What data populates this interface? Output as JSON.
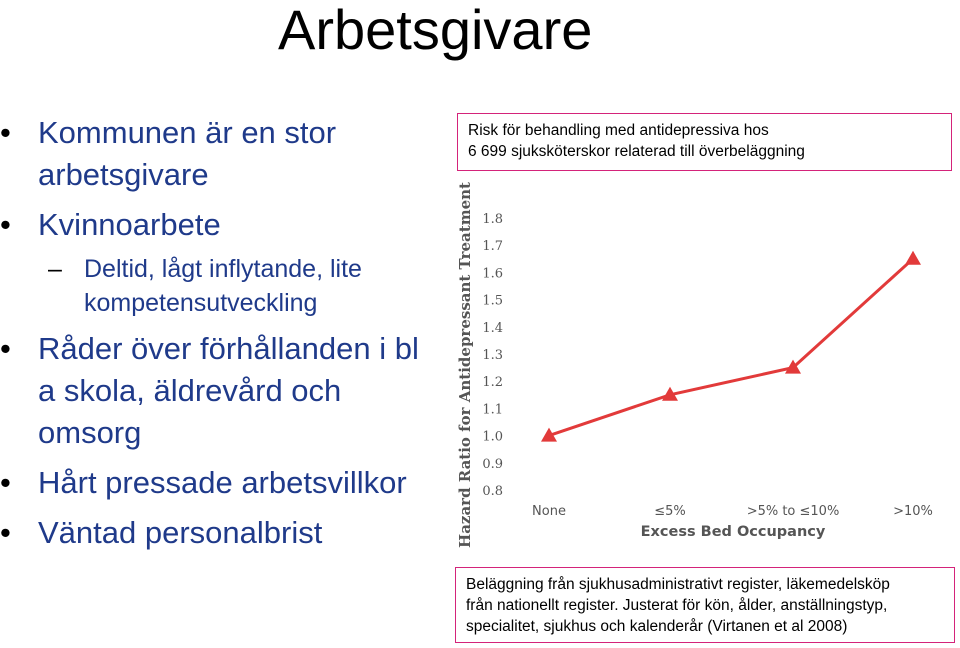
{
  "title": "Arbetsgivare",
  "bullets": [
    "Kommunen är en stor arbetsgivare",
    "Kvinnoarbete",
    "Deltid, lågt inflytande, lite kompetensutveckling",
    "Råder över förhållanden i bl a skola, äldrevård och omsorg",
    "Hårt pressade arbetsvillkor",
    "Väntad personalbrist"
  ],
  "caption_top": {
    "line1": "Risk för behandling med antidepressiva hos",
    "line2": "6 699 sjuksköterskor relaterad till överbeläggning"
  },
  "caption_bottom": {
    "line1": "Beläggning från sjukhusadministrativt register, läkemedelsköp",
    "line2": "från nationellt register. Justerat för kön, ålder, anställningstyp,",
    "line3": "specialitet, sjukhus och kalenderår (Virtanen et al 2008)"
  },
  "chart_data": {
    "type": "line",
    "categories": [
      "None",
      "≤5%",
      ">5% to ≤10%",
      ">10%"
    ],
    "series": [
      {
        "values": [
          1.0,
          1.15,
          1.25,
          1.65
        ],
        "color": "#e23a3a",
        "marker": "triangle"
      }
    ],
    "xlabel": "Excess Bed Occupancy",
    "ylabel": "Hazard Ratio for Antidepressant Treatment",
    "yticks": [
      "0.8",
      "0.9",
      "1.0",
      "1.1",
      "1.2",
      "1.3",
      "1.4",
      "1.5",
      "1.6",
      "1.7",
      "1.8"
    ],
    "ylim": [
      0.8,
      1.8
    ],
    "grid": false
  }
}
